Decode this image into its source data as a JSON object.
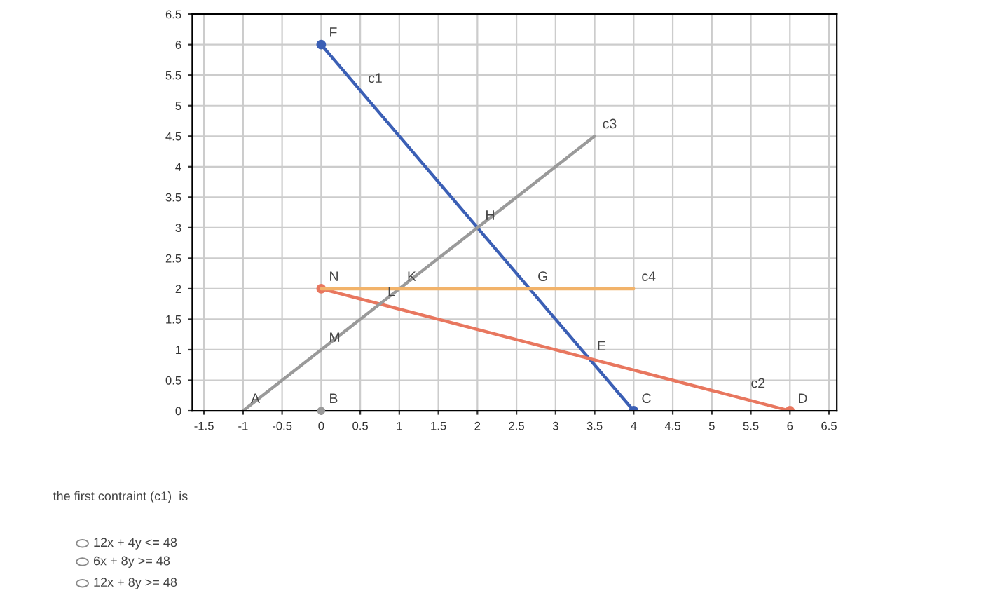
{
  "chart_data": {
    "type": "line",
    "series": [
      {
        "color": "#3b5fb5",
        "x": [
          0,
          4
        ],
        "values": [
          6,
          0
        ],
        "marker": "circle"
      },
      {
        "color": "#e8775f",
        "x": [
          0,
          6
        ],
        "values": [
          2,
          0
        ],
        "marker": "circle"
      },
      {
        "color": "#9a9a9a",
        "x": [
          -1,
          0,
          3.5
        ],
        "values": [
          0,
          1,
          4.5
        ],
        "marker": "none"
      },
      {
        "color": "#f2b36a",
        "x": [
          0,
          4
        ],
        "values": [
          2,
          2
        ],
        "marker": "none"
      },
      {
        "type": "scatter",
        "color": "#9a9a9a",
        "x": [
          0
        ],
        "values": [
          0
        ]
      }
    ],
    "xlim": [
      -1.65,
      6.6
    ],
    "ylim": [
      0,
      6.5
    ],
    "xticks": [
      -1.5,
      -1,
      -0.5,
      0,
      0.5,
      1,
      1.5,
      2,
      2.5,
      3,
      3.5,
      4,
      4.5,
      5,
      5.5,
      6,
      6.5
    ],
    "yticks": [
      0,
      0.5,
      1,
      1.5,
      2,
      2.5,
      3,
      3.5,
      4,
      4.5,
      5,
      5.5,
      6,
      6.5
    ],
    "grid": true,
    "line_style": "solid",
    "annotations": [
      {
        "text": "c1",
        "x": 0.5,
        "y": 5.25
      },
      {
        "text": "c2",
        "x": 5.4,
        "y": 0.25
      },
      {
        "text": "c3",
        "x": 3.5,
        "y": 4.5
      },
      {
        "text": "c4",
        "x": 4,
        "y": 2
      },
      {
        "text": "A",
        "x": -1,
        "y": 0
      },
      {
        "text": "B",
        "x": 0,
        "y": 0
      },
      {
        "text": "C",
        "x": 4,
        "y": 0
      },
      {
        "text": "D",
        "x": 6,
        "y": 0
      },
      {
        "text": "E",
        "x": 3.43,
        "y": 0.86
      },
      {
        "text": "F",
        "x": 0,
        "y": 6
      },
      {
        "text": "G",
        "x": 2.67,
        "y": 2
      },
      {
        "text": "H",
        "x": 2,
        "y": 3
      },
      {
        "text": "K",
        "x": 1,
        "y": 2
      },
      {
        "text": "L",
        "x": 0.75,
        "y": 1.75
      },
      {
        "text": "M",
        "x": 0,
        "y": 1
      },
      {
        "text": "N",
        "x": 0,
        "y": 2
      },
      "the first contraint (c1)  is",
      "12x + 4y <= 48",
      "6x + 8y >= 48",
      "12x + 8y >= 48"
    ]
  }
}
